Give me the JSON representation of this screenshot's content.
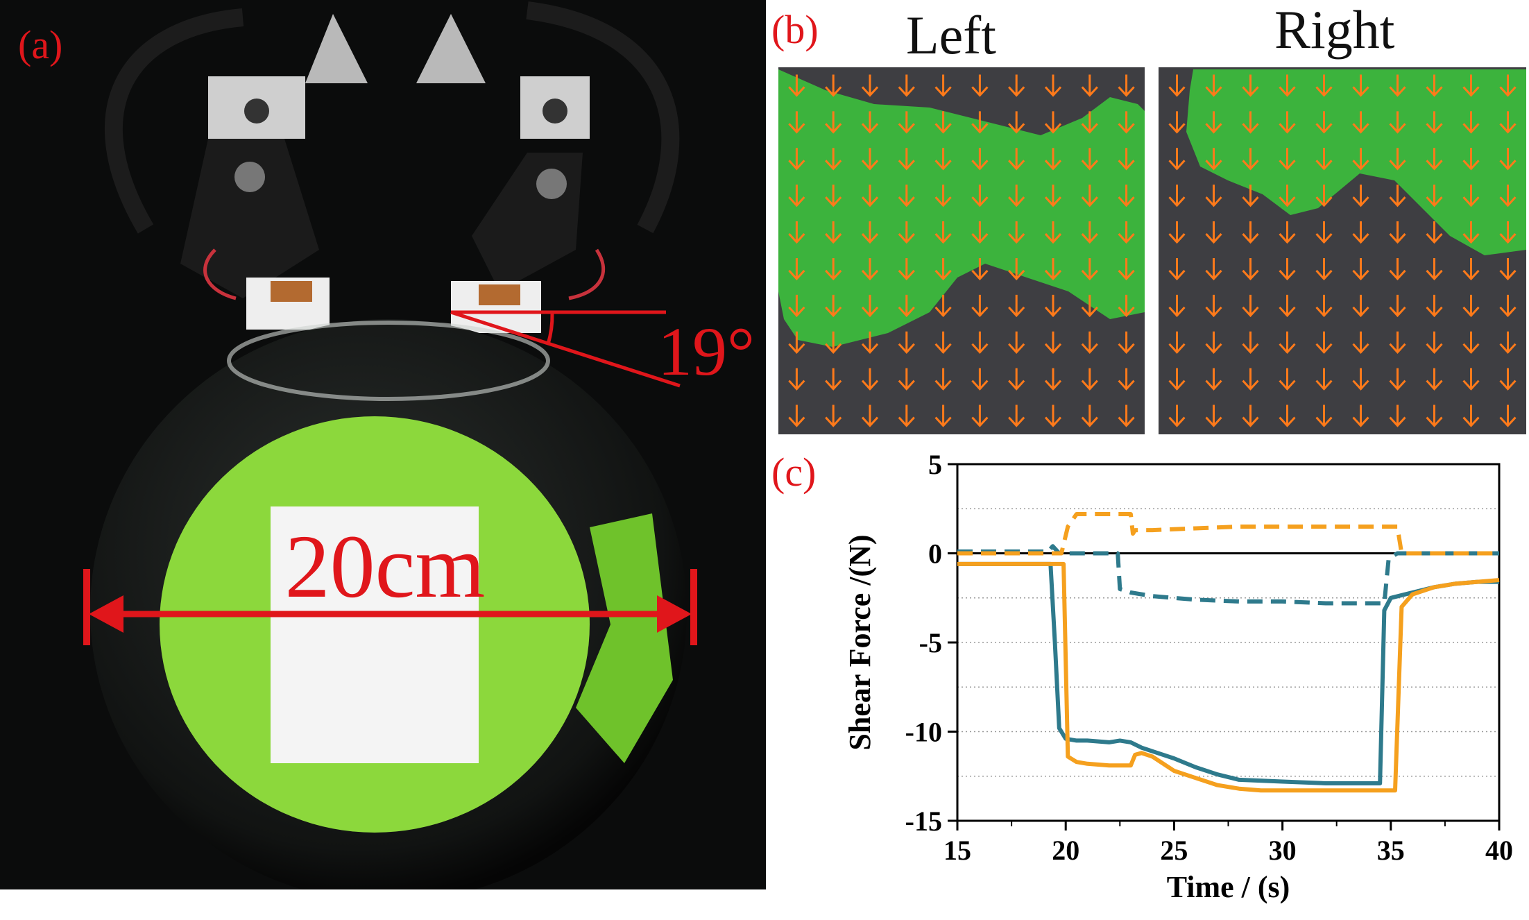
{
  "panels": {
    "a": "(a)",
    "b": "(b)",
    "c": "(c)"
  },
  "photo": {
    "angle_label": "19°",
    "width_label": "20cm"
  },
  "heatmaps": {
    "left_title": "Left",
    "right_title": "Right"
  },
  "colors": {
    "label_red": "#e0161b",
    "teal": "#2e7a8c",
    "orange": "#f5a01e",
    "contact_green": "#3cc83c",
    "arrow_orange": "#ff7a1a"
  },
  "chart_data": {
    "type": "line",
    "xlabel": "Time / (s)",
    "ylabel": "Shear Force /(N)",
    "xlim": [
      15,
      40
    ],
    "ylim": [
      -15,
      5
    ],
    "xticks": [
      15,
      20,
      25,
      30,
      35,
      40
    ],
    "yticks": [
      5,
      0,
      -5,
      -10,
      -15
    ],
    "dotted_gridlines_y": [
      2.5,
      0,
      -2.5,
      -5,
      -7.5,
      -10,
      -12.5
    ],
    "series": [
      {
        "color": "#2e7a8c",
        "style": "solid",
        "x": [
          15,
          19.3,
          19.5,
          19.7,
          20,
          20.5,
          21,
          22,
          22.5,
          23,
          23.5,
          24,
          25,
          26,
          27,
          28,
          30,
          32,
          34,
          34.5,
          34.7,
          35,
          36,
          37,
          38,
          39,
          40
        ],
        "y": [
          -0.6,
          -0.6,
          -5,
          -9.8,
          -10.4,
          -10.5,
          -10.5,
          -10.6,
          -10.5,
          -10.6,
          -10.9,
          -11.1,
          -11.5,
          -12.0,
          -12.4,
          -12.7,
          -12.8,
          -12.9,
          -12.9,
          -12.9,
          -3.2,
          -2.5,
          -2.2,
          -1.9,
          -1.7,
          -1.6,
          -1.6
        ]
      },
      {
        "color": "#f5a01e",
        "style": "solid",
        "x": [
          15,
          19.9,
          20.1,
          20.5,
          21,
          22,
          23,
          23.2,
          23.5,
          24,
          25,
          26,
          27,
          28,
          29,
          30,
          32,
          34,
          35.2,
          35.5,
          36,
          37,
          38,
          39,
          40
        ],
        "y": [
          -0.6,
          -0.6,
          -11.4,
          -11.7,
          -11.8,
          -11.9,
          -11.9,
          -11.3,
          -11.2,
          -11.4,
          -12.2,
          -12.6,
          -13.0,
          -13.2,
          -13.3,
          -13.3,
          -13.3,
          -13.3,
          -13.3,
          -3.0,
          -2.3,
          -1.9,
          -1.7,
          -1.6,
          -1.5
        ]
      },
      {
        "color": "#2e7a8c",
        "style": "dashed",
        "x": [
          15,
          19.2,
          19.4,
          19.7,
          20,
          22,
          22.4,
          22.5,
          23,
          24,
          25,
          26,
          28,
          30,
          32,
          34,
          34.7,
          34.9,
          35.3,
          36,
          38,
          40
        ],
        "y": [
          0.1,
          0.1,
          0.4,
          0.0,
          0.0,
          0.0,
          0.0,
          -2.0,
          -2.2,
          -2.4,
          -2.5,
          -2.6,
          -2.7,
          -2.7,
          -2.8,
          -2.8,
          -2.8,
          -0.3,
          0.0,
          0.0,
          0.0,
          0.0
        ]
      },
      {
        "color": "#f5a01e",
        "style": "dashed",
        "x": [
          15,
          19.8,
          20.1,
          20.5,
          22,
          23,
          23.1,
          23.2,
          24,
          26,
          28,
          30,
          32,
          34,
          35.3,
          35.5,
          36,
          38,
          40
        ],
        "y": [
          0.0,
          0.0,
          1.5,
          2.2,
          2.2,
          2.2,
          1.1,
          1.3,
          1.3,
          1.4,
          1.5,
          1.5,
          1.5,
          1.5,
          1.5,
          0.0,
          0.0,
          0.0,
          0.0
        ]
      }
    ]
  }
}
